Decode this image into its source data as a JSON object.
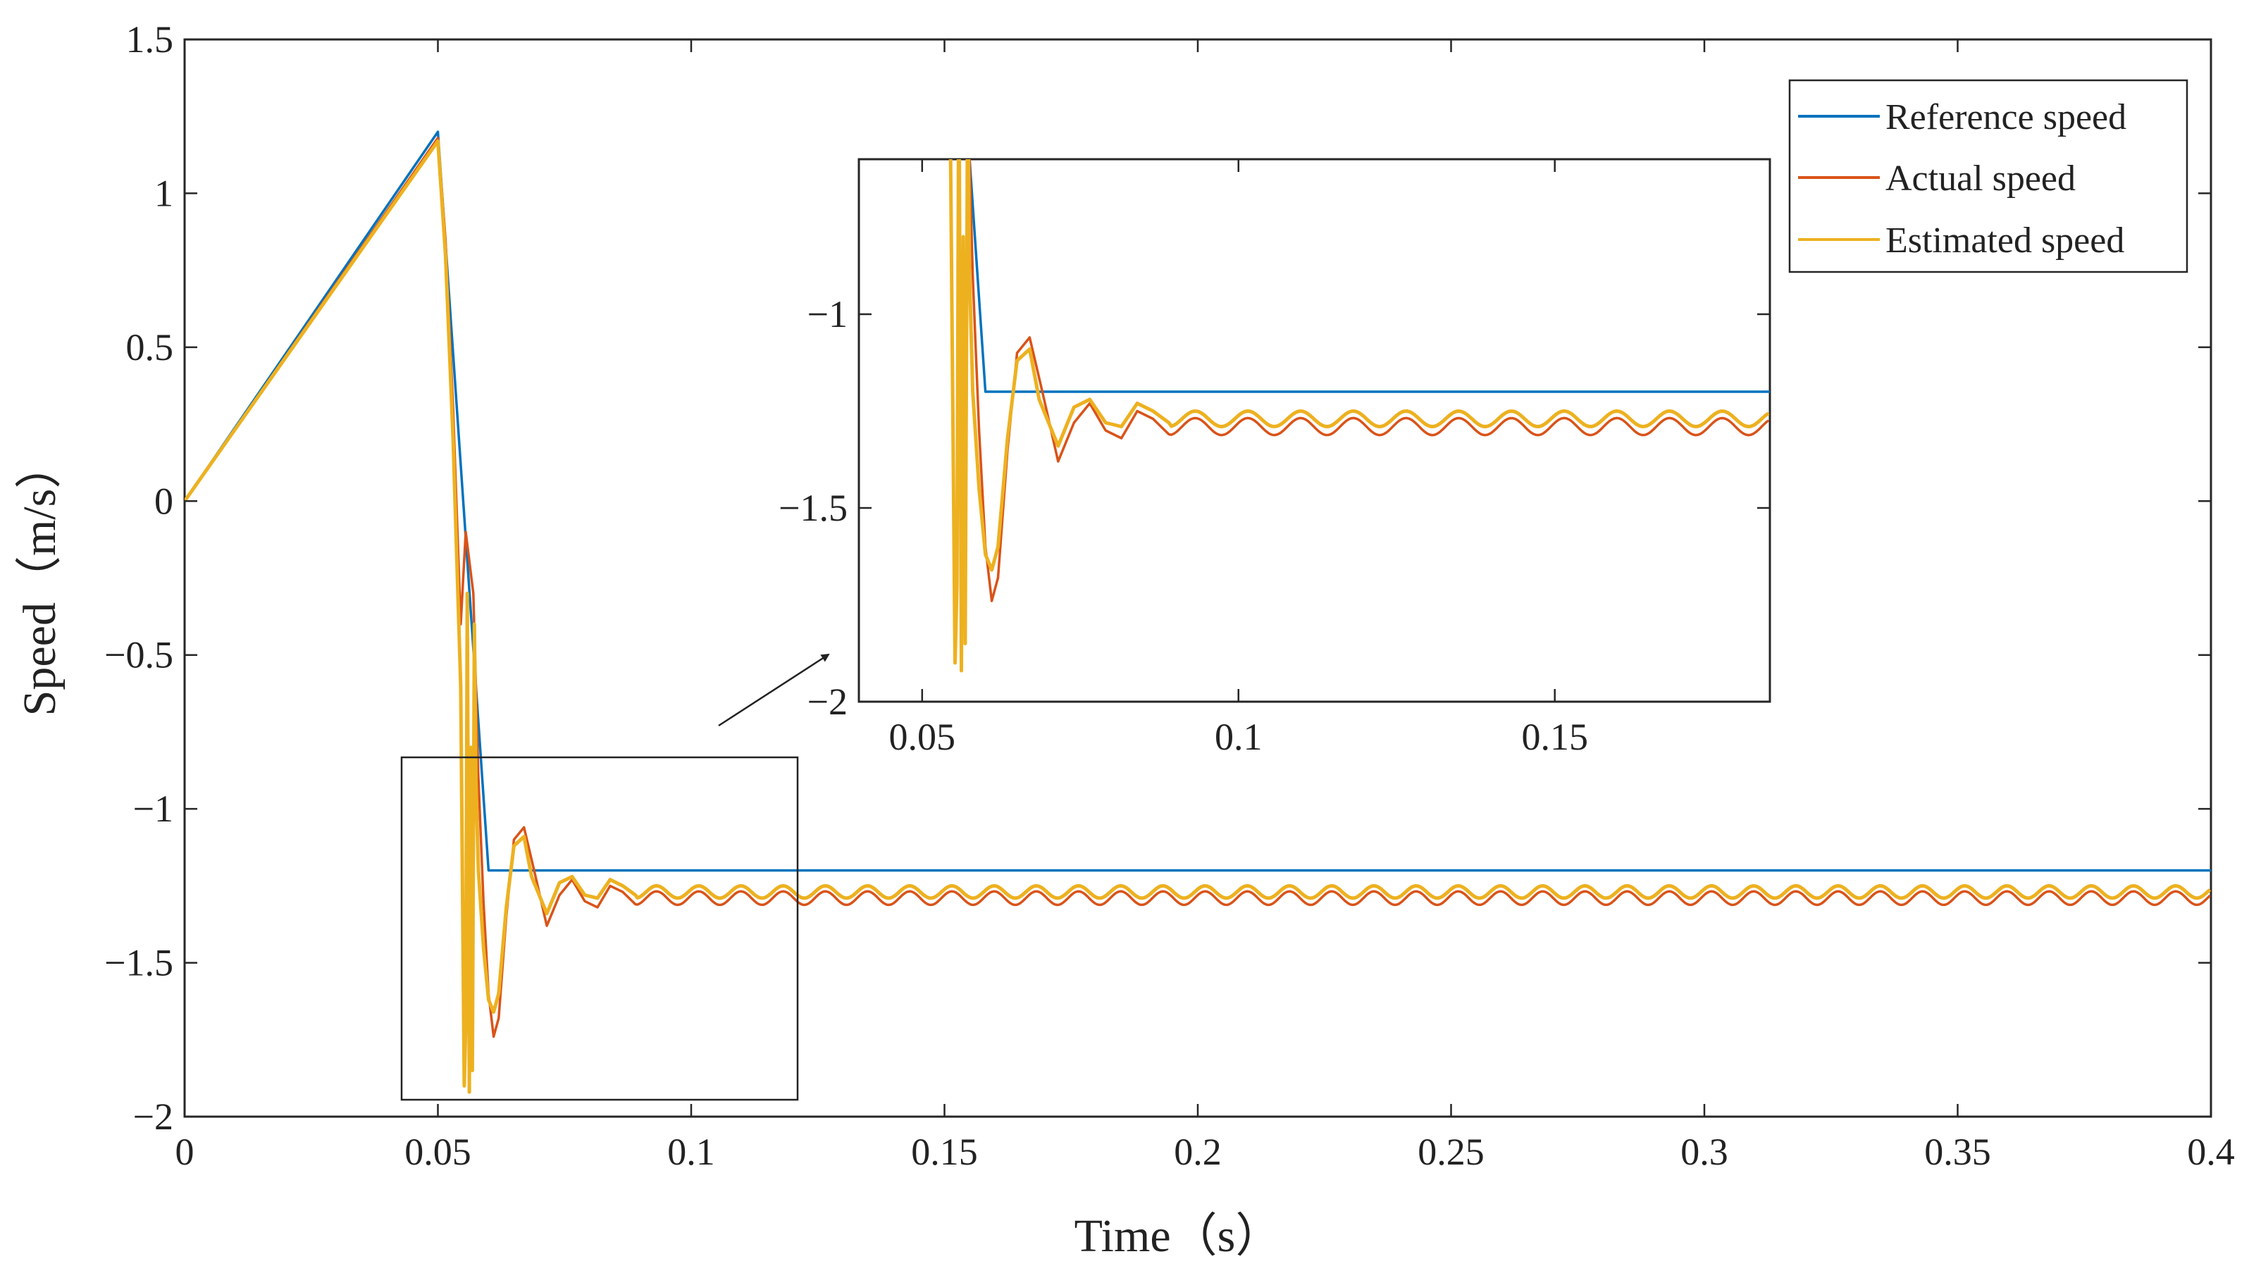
{
  "chart_data": {
    "type": "line",
    "xlabel": "Time（s）",
    "ylabel": "Speed（m/s）",
    "xlim": [
      0,
      0.4
    ],
    "ylim": [
      -2,
      1.5
    ],
    "xticks": [
      "0",
      "0.05",
      "0.1",
      "0.15",
      "0.2",
      "0.25",
      "0.3",
      "0.35",
      "0.4"
    ],
    "yticks": [
      "1.5",
      "1",
      "0.5",
      "0",
      "−0.5",
      "−1",
      "−1.5",
      "−2"
    ],
    "grid": false,
    "legend_position": "top-right",
    "series": [
      {
        "name": "Reference speed",
        "color": "#0072BD",
        "x": [
          0,
          0.05,
          0.06,
          0.4
        ],
        "y": [
          0,
          1.2,
          -1.2,
          -1.2
        ]
      },
      {
        "name": "Actual speed",
        "color": "#D95319",
        "x": [
          0,
          0.05,
          0.0515,
          0.053,
          0.0545,
          0.0555,
          0.057,
          0.058,
          0.059,
          0.06,
          0.061,
          0.062,
          0.0635,
          0.065,
          0.067,
          0.069,
          0.0715,
          0.074,
          0.0765,
          0.079,
          0.0815,
          0.084,
          0.0865,
          0.089,
          0.4
        ],
        "y": [
          0,
          1.18,
          0.85,
          0.3,
          -0.4,
          -0.1,
          -0.3,
          -0.9,
          -1.3,
          -1.6,
          -1.74,
          -1.68,
          -1.35,
          -1.1,
          -1.06,
          -1.2,
          -1.38,
          -1.28,
          -1.23,
          -1.3,
          -1.32,
          -1.25,
          -1.27,
          -1.31,
          -1.29
        ],
        "ripple": {
          "amplitude": 0.022,
          "period": 0.00833,
          "start_x": 0.089
        }
      },
      {
        "name": "Estimated speed",
        "color": "#EDB120",
        "x": [
          0,
          0.05,
          0.0515,
          0.053,
          0.0545,
          0.0552,
          0.0555,
          0.0558,
          0.0562,
          0.0565,
          0.0568,
          0.0572,
          0.0575,
          0.058,
          0.059,
          0.06,
          0.061,
          0.062,
          0.0635,
          0.065,
          0.067,
          0.0685,
          0.0715,
          0.074,
          0.0765,
          0.079,
          0.0815,
          0.084,
          0.0865,
          0.089,
          0.4
        ],
        "y": [
          0,
          1.17,
          0.8,
          0.2,
          -0.6,
          -1.9,
          -1.7,
          -0.3,
          -1.92,
          -0.8,
          -1.85,
          -0.4,
          -0.9,
          -1.2,
          -1.45,
          -1.62,
          -1.66,
          -1.6,
          -1.32,
          -1.12,
          -1.09,
          -1.22,
          -1.34,
          -1.24,
          -1.22,
          -1.28,
          -1.29,
          -1.23,
          -1.25,
          -1.28,
          -1.27
        ],
        "ripple": {
          "amplitude": 0.02,
          "period": 0.00833,
          "start_x": 0.089
        }
      }
    ],
    "inset": {
      "xlim": [
        0.04,
        0.184
      ],
      "ylim": [
        -2,
        -0.6
      ],
      "xticks": [
        "0.05",
        "0.1",
        "0.15"
      ],
      "yticks": [
        "−1",
        "−1.5",
        "−2"
      ]
    }
  }
}
